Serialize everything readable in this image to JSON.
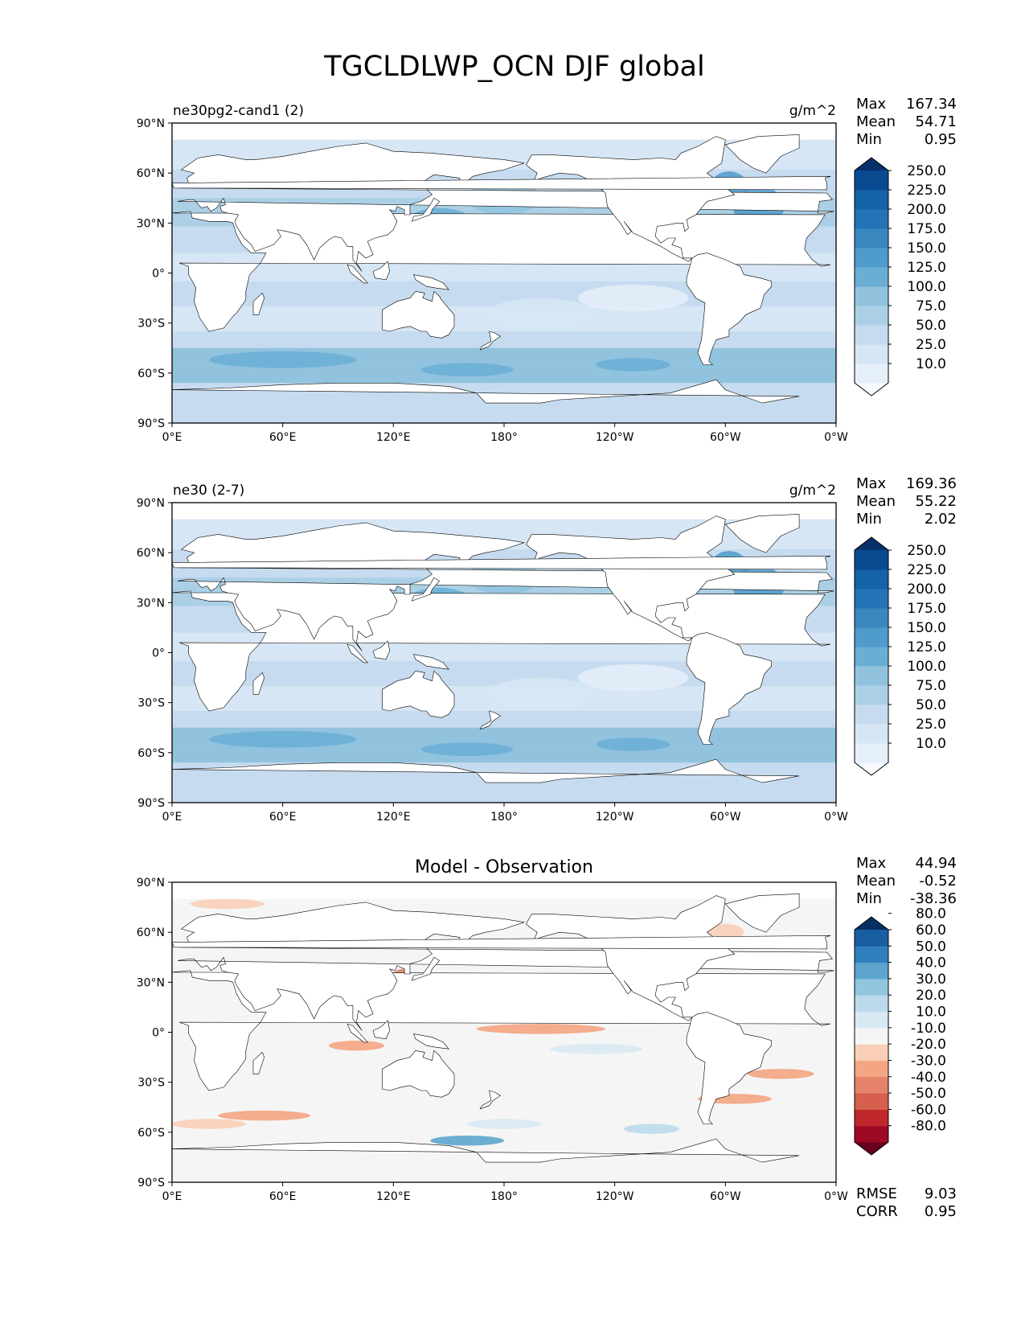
{
  "figure_title": "TGCLDLWP_OCN DJF global",
  "chart_data": [
    {
      "type": "heatmap",
      "panel": "test",
      "title_left": "ne30pg2-cand1 (2)",
      "title_center": "",
      "units": "g/m^2",
      "stats": {
        "max_label": "Max",
        "max": "167.34",
        "mean_label": "Mean",
        "mean": "54.71",
        "min_label": "Min",
        "min": "0.95"
      },
      "colorbar": {
        "levels": [
          "10.0",
          "25.0",
          "50.0",
          "75.0",
          "100.0",
          "125.0",
          "150.0",
          "175.0",
          "200.0",
          "225.0",
          "250.0"
        ],
        "colors": [
          "#f7fbff",
          "#e5eff9",
          "#d6e6f4",
          "#c6dbef",
          "#abd0e6",
          "#91c3de",
          "#6aaed6",
          "#4f9bcb",
          "#3a87c0",
          "#2473b6",
          "#1462a8",
          "#0a4a91",
          "#08306b"
        ]
      },
      "xticks": [
        "0°E",
        "60°E",
        "120°E",
        "180°",
        "120°W",
        "60°W",
        "0°W"
      ],
      "yticks": [
        "90°N",
        "60°N",
        "30°N",
        "0°",
        "30°S",
        "60°S",
        "90°S"
      ],
      "xlim": [
        0,
        360
      ],
      "ylim": [
        -90,
        90
      ]
    },
    {
      "type": "heatmap",
      "panel": "reference",
      "title_left": "ne30 (2-7)",
      "title_center": "",
      "units": "g/m^2",
      "stats": {
        "max_label": "Max",
        "max": "169.36",
        "mean_label": "Mean",
        "mean": "55.22",
        "min_label": "Min",
        "min": "2.02"
      },
      "colorbar": {
        "levels": [
          "10.0",
          "25.0",
          "50.0",
          "75.0",
          "100.0",
          "125.0",
          "150.0",
          "175.0",
          "200.0",
          "225.0",
          "250.0"
        ],
        "colors": [
          "#f7fbff",
          "#e5eff9",
          "#d6e6f4",
          "#c6dbef",
          "#abd0e6",
          "#91c3de",
          "#6aaed6",
          "#4f9bcb",
          "#3a87c0",
          "#2473b6",
          "#1462a8",
          "#0a4a91",
          "#08306b"
        ]
      },
      "xticks": [
        "0°E",
        "60°E",
        "120°E",
        "180°",
        "120°W",
        "60°W",
        "0°W"
      ],
      "yticks": [
        "90°N",
        "60°N",
        "30°N",
        "0°",
        "30°S",
        "60°S",
        "90°S"
      ],
      "xlim": [
        0,
        360
      ],
      "ylim": [
        -90,
        90
      ]
    },
    {
      "type": "heatmap",
      "panel": "difference",
      "title_left": "",
      "title_center": "Model - Observation",
      "units": "",
      "stats": {
        "max_label": "Max",
        "max": "44.94",
        "mean_label": "Mean",
        "mean": "-0.52",
        "min_label": "Min",
        "min": "-38.36"
      },
      "extra_stats": {
        "rmse_label": "RMSE",
        "rmse": "9.03",
        "corr_label": "CORR",
        "corr": "0.95"
      },
      "colorbar": {
        "levels": [
          "-80.0",
          "-60.0",
          "-50.0",
          "-40.0",
          "-30.0",
          "-20.0",
          "-10.0",
          "10.0",
          "20.0",
          "30.0",
          "40.0",
          "50.0",
          "60.0",
          "80.0"
        ],
        "colors": [
          "#67001f",
          "#9e0a26",
          "#c0282e",
          "#d6604d",
          "#e4826a",
          "#f4a582",
          "#f9cfb7",
          "#f5f5f5",
          "#d9e9f3",
          "#bcdaeb",
          "#92c5de",
          "#5ea5ce",
          "#2f7fbc",
          "#1a5ea2",
          "#053061"
        ]
      },
      "xticks": [
        "0°E",
        "60°E",
        "120°E",
        "180°",
        "120°W",
        "60°W",
        "0°W"
      ],
      "yticks": [
        "90°N",
        "60°N",
        "30°N",
        "0°",
        "30°S",
        "60°S",
        "90°S"
      ],
      "xlim": [
        0,
        360
      ],
      "ylim": [
        -90,
        90
      ]
    }
  ]
}
